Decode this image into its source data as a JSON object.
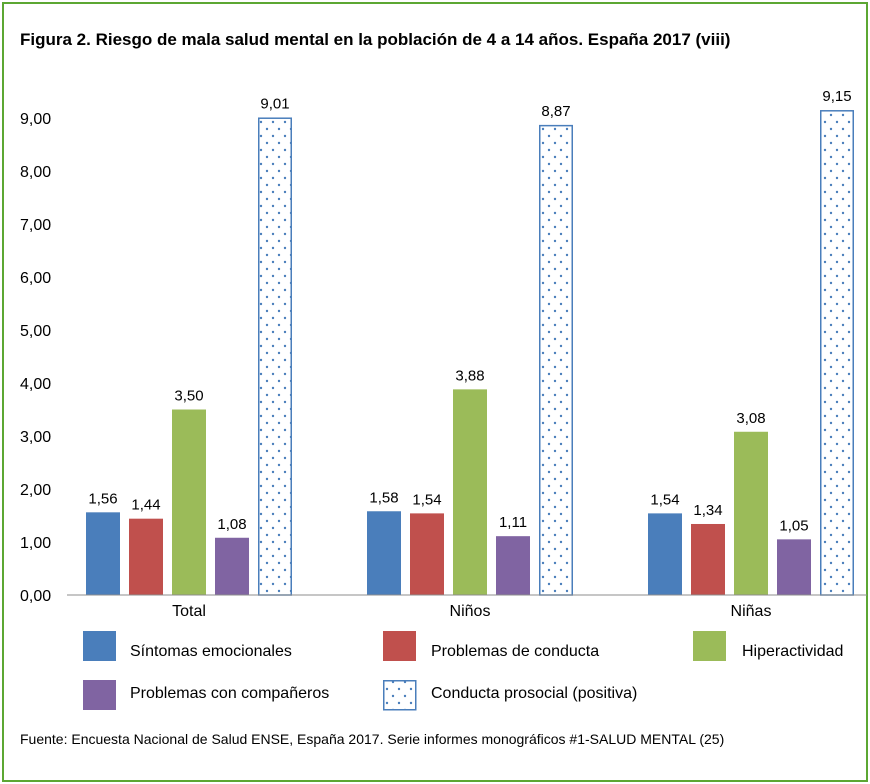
{
  "title": "Figura 2. Riesgo de mala salud mental en la población de 4 a 14 años. España 2017 (viii)",
  "source": "Fuente: Encuesta Nacional de Salud ENSE, España 2017. Serie informes monográficos #1-SALUD MENTAL (25)",
  "colors": {
    "frame": "#5ca733",
    "sintomas": "#4a7ebb",
    "conducta": "#c0504d",
    "hiperactividad": "#9bbb59",
    "companeros": "#8064a2",
    "prosocial": "#4a7ebb"
  },
  "chart_data": {
    "type": "bar",
    "categories": [
      "Total",
      "Niños",
      "Niñas"
    ],
    "ylim": [
      0,
      9
    ],
    "ytick_step": 1,
    "ytick_labels": [
      "0,00",
      "1,00",
      "2,00",
      "3,00",
      "4,00",
      "5,00",
      "6,00",
      "7,00",
      "8,00",
      "9,00"
    ],
    "legend_position": "bottom",
    "series": [
      {
        "name": "Síntomas emocionales",
        "color": "#4a7ebb",
        "fill": "solid",
        "values": [
          1.56,
          1.58,
          1.54
        ],
        "labels": [
          "1,56",
          "1,58",
          "1,54"
        ]
      },
      {
        "name": "Problemas de conducta",
        "color": "#c0504d",
        "fill": "solid",
        "values": [
          1.44,
          1.54,
          1.34
        ],
        "labels": [
          "1,44",
          "1,54",
          "1,34"
        ]
      },
      {
        "name": "Hiperactividad",
        "color": "#9bbb59",
        "fill": "solid",
        "values": [
          3.5,
          3.88,
          3.08
        ],
        "labels": [
          "3,50",
          "3,88",
          "3,08"
        ]
      },
      {
        "name": "Problemas con compañeros",
        "color": "#8064a2",
        "fill": "solid",
        "values": [
          1.08,
          1.11,
          1.05
        ],
        "labels": [
          "1,08",
          "1,11",
          "1,05"
        ]
      },
      {
        "name": "Conducta prosocial (positiva)",
        "color": "#4a7ebb",
        "fill": "dotted",
        "values": [
          9.01,
          8.87,
          9.15
        ],
        "labels": [
          "9,01",
          "8,87",
          "9,15"
        ]
      }
    ]
  }
}
